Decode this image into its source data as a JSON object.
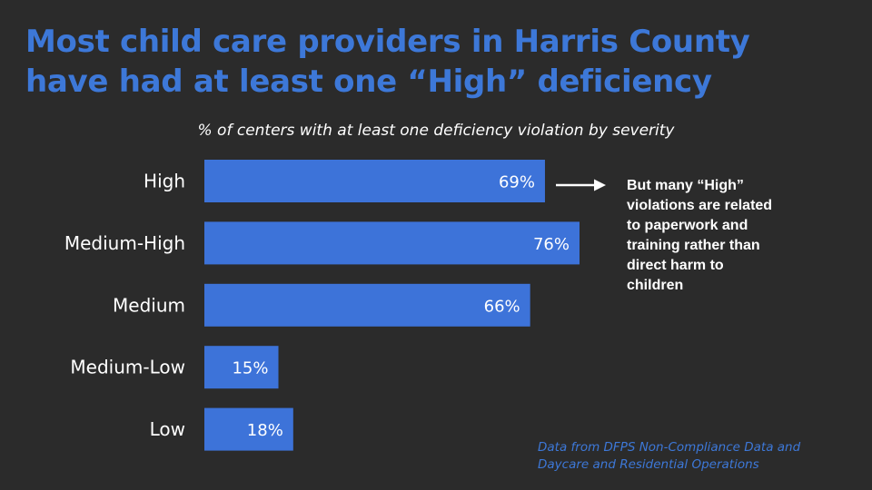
{
  "title": {
    "line1": "Most child care providers in Harris County",
    "line2": "have had at least one “High” deficiency"
  },
  "callout": {
    "lines": [
      "But many “High”",
      "violations are related",
      "to paperwork and",
      "training rather than",
      "direct  harm to",
      "children"
    ]
  },
  "source": {
    "lines": [
      "Data from DFPS Non-Compliance Data and",
      "Daycare and Residential Operations"
    ]
  },
  "colors": {
    "background": "#2b2b2b",
    "bar": "#3d73d9",
    "title": "#3d78d8",
    "text": "#ffffff"
  },
  "chart_data": {
    "type": "bar",
    "orientation": "horizontal",
    "subtitle": "% of centers with at least one deficiency violation by severity",
    "categories": [
      "High",
      "Medium-High",
      "Medium",
      "Medium-Low",
      "Low"
    ],
    "values": [
      69,
      76,
      66,
      15,
      18
    ],
    "value_labels": [
      "69%",
      "76%",
      "66%",
      "15%",
      "18%"
    ],
    "xlim": [
      0,
      100
    ],
    "grid": false,
    "legend": "none"
  }
}
